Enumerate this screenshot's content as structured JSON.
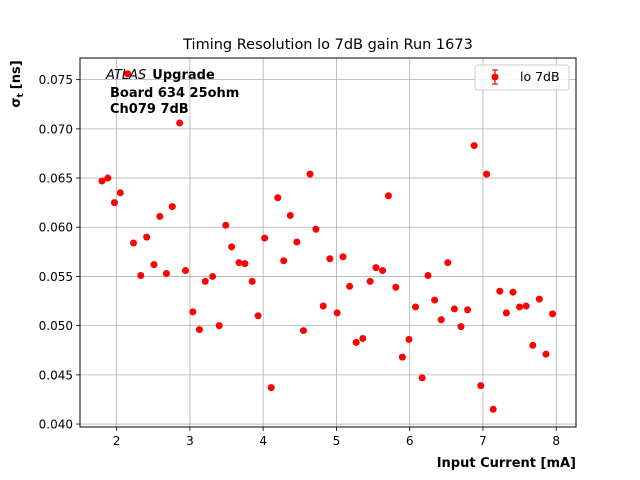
{
  "chart_data": {
    "type": "scatter",
    "title": "Timing Resolution lo 7dB gain Run 1673",
    "xlabel": "Input Current [mA]",
    "ylabel_main": "σ",
    "ylabel_sub": "t",
    "ylabel_unit": "[ns]",
    "xlim": [
      1.5,
      8.27
    ],
    "ylim": [
      0.0397,
      0.0772
    ],
    "xticks": [
      2,
      3,
      4,
      5,
      6,
      7,
      8
    ],
    "yticks": [
      0.04,
      0.045,
      0.05,
      0.055,
      0.06,
      0.065,
      0.07,
      0.075
    ],
    "ytick_labels": [
      "0.040",
      "0.045",
      "0.050",
      "0.055",
      "0.060",
      "0.065",
      "0.070",
      "0.075"
    ],
    "grid": true,
    "legend_position": "top-right",
    "annotation": {
      "experiment": "ATLAS",
      "tag": "Upgrade",
      "line2": "Board 634 25ohm",
      "line3": "Ch079 7dB"
    },
    "series": [
      {
        "name": "lo 7dB",
        "color": "#ff0000",
        "points": [
          [
            1.8,
            0.0647
          ],
          [
            1.88,
            0.065
          ],
          [
            1.97,
            0.0625
          ],
          [
            2.05,
            0.0635
          ],
          [
            2.15,
            0.0756
          ],
          [
            2.23,
            0.0584
          ],
          [
            2.33,
            0.0551
          ],
          [
            2.41,
            0.059
          ],
          [
            2.51,
            0.0562
          ],
          [
            2.59,
            0.0611
          ],
          [
            2.68,
            0.0553
          ],
          [
            2.76,
            0.0621
          ],
          [
            2.86,
            0.0706
          ],
          [
            2.94,
            0.0556
          ],
          [
            3.04,
            0.0514
          ],
          [
            3.13,
            0.0496
          ],
          [
            3.21,
            0.0545
          ],
          [
            3.31,
            0.055
          ],
          [
            3.4,
            0.05
          ],
          [
            3.49,
            0.0602
          ],
          [
            3.57,
            0.058
          ],
          [
            3.67,
            0.0564
          ],
          [
            3.75,
            0.0563
          ],
          [
            3.85,
            0.0545
          ],
          [
            3.93,
            0.051
          ],
          [
            4.02,
            0.0589
          ],
          [
            4.11,
            0.0437
          ],
          [
            4.2,
            0.063
          ],
          [
            4.28,
            0.0566
          ],
          [
            4.37,
            0.0612
          ],
          [
            4.46,
            0.0585
          ],
          [
            4.55,
            0.0495
          ],
          [
            4.64,
            0.0654
          ],
          [
            4.72,
            0.0598
          ],
          [
            4.82,
            0.052
          ],
          [
            4.91,
            0.0568
          ],
          [
            5.01,
            0.0513
          ],
          [
            5.09,
            0.057
          ],
          [
            5.18,
            0.054
          ],
          [
            5.27,
            0.0483
          ],
          [
            5.36,
            0.0487
          ],
          [
            5.46,
            0.0545
          ],
          [
            5.54,
            0.0559
          ],
          [
            5.63,
            0.0556
          ],
          [
            5.71,
            0.0632
          ],
          [
            5.81,
            0.0539
          ],
          [
            5.9,
            0.0468
          ],
          [
            5.99,
            0.0486
          ],
          [
            6.08,
            0.0519
          ],
          [
            6.17,
            0.0447
          ],
          [
            6.25,
            0.0551
          ],
          [
            6.34,
            0.0526
          ],
          [
            6.43,
            0.0506
          ],
          [
            6.52,
            0.0564
          ],
          [
            6.61,
            0.0517
          ],
          [
            6.7,
            0.0499
          ],
          [
            6.79,
            0.0516
          ],
          [
            6.88,
            0.0683
          ],
          [
            6.97,
            0.0439
          ],
          [
            7.05,
            0.0654
          ],
          [
            7.14,
            0.0415
          ],
          [
            7.23,
            0.0535
          ],
          [
            7.32,
            0.0513
          ],
          [
            7.41,
            0.0534
          ],
          [
            7.5,
            0.0519
          ],
          [
            7.59,
            0.052
          ],
          [
            7.68,
            0.048
          ],
          [
            7.77,
            0.0527
          ],
          [
            7.86,
            0.0471
          ],
          [
            7.95,
            0.0512
          ]
        ]
      }
    ]
  }
}
